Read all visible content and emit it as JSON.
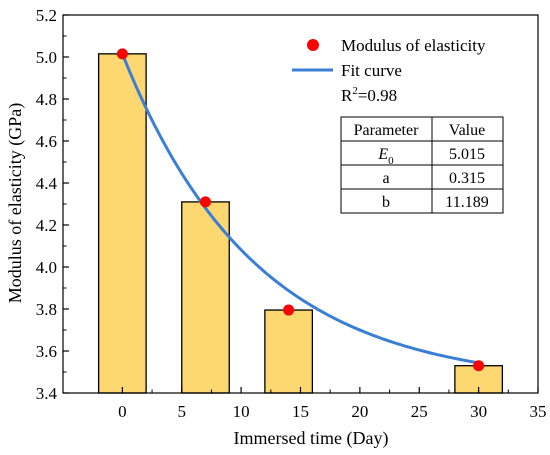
{
  "chart_data": {
    "type": "bar",
    "xlabel": "Immersed time (Day)",
    "ylabel": "Modulus of elasticity (GPa)",
    "xlim": [
      -5,
      35
    ],
    "ylim": [
      3.4,
      5.2
    ],
    "x_ticks": [
      "0",
      "5",
      "10",
      "15",
      "20",
      "25",
      "30",
      "35"
    ],
    "y_ticks": [
      "3.4",
      "3.6",
      "3.8",
      "4.0",
      "4.2",
      "4.4",
      "4.6",
      "4.8",
      "5.0",
      "5.2"
    ],
    "x_tick_values": [
      0,
      5,
      10,
      15,
      20,
      25,
      30,
      35
    ],
    "y_tick_values": [
      3.4,
      3.6,
      3.8,
      4.0,
      4.2,
      4.4,
      4.6,
      4.8,
      5.0,
      5.2
    ],
    "bars": {
      "x": [
        0,
        7,
        14,
        30
      ],
      "values": [
        5.015,
        4.31,
        3.795,
        3.53
      ],
      "width_days": 4,
      "color": "#FDD770",
      "edge_color": "#000000"
    },
    "series": [
      {
        "name": "Modulus of elasticity",
        "kind": "scatter",
        "x": [
          0,
          7,
          14,
          30
        ],
        "y": [
          5.015,
          4.31,
          3.795,
          3.53
        ],
        "color": "#FF0000"
      },
      {
        "name": "Fit curve",
        "kind": "line",
        "color": "#3A7FD5",
        "model": {
          "E0": 5.015,
          "a": 0.315,
          "b": 11.189
        }
      }
    ],
    "annotation": {
      "r2_prefix": "R",
      "r2_sup": "2",
      "r2_rest": "=0.98"
    },
    "parameter_table": {
      "headers": [
        "Parameter",
        "Value"
      ],
      "rows": [
        {
          "name_main": "E",
          "name_sub": "0",
          "value": "5.015"
        },
        {
          "name_main": "a",
          "name_sub": "",
          "value": "0.315"
        },
        {
          "name_main": "b",
          "name_sub": "",
          "value": "11.189"
        }
      ]
    },
    "legend_position": "top-right",
    "grid": false
  }
}
